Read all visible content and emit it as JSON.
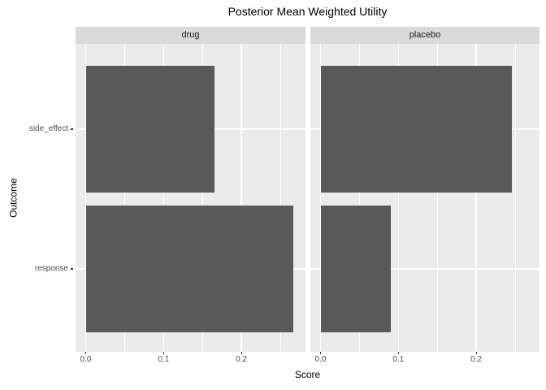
{
  "chart_data": {
    "type": "bar",
    "orientation": "horizontal",
    "title": "Posterior Mean Weighted Utility",
    "xlabel": "Score",
    "ylabel": "Outcome",
    "categories": [
      "side_effect",
      "response"
    ],
    "facets": [
      {
        "label": "drug",
        "values": [
          0.165,
          0.267
        ]
      },
      {
        "label": "placebo",
        "values": [
          0.246,
          0.09
        ]
      }
    ],
    "x_ticks": [
      {
        "value": 0.0,
        "label": "0.0"
      },
      {
        "value": 0.1,
        "label": "0.1"
      },
      {
        "value": 0.2,
        "label": "0.2"
      }
    ],
    "x_minor_ticks": [
      0.05,
      0.15,
      0.25
    ],
    "xlim": [
      -0.013,
      0.282
    ],
    "grid": true,
    "legend": "none",
    "colors": {
      "bar": "#595959",
      "panel_background": "#EBEBEB",
      "strip_background": "#D9D9D9",
      "gridline": "#FFFFFF",
      "tick_text": "#4D4D4D",
      "tick_mark": "#333333",
      "title_text": "#000000"
    }
  }
}
